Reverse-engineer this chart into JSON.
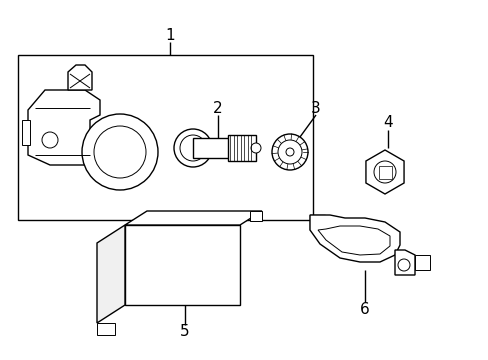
{
  "background_color": "#ffffff",
  "line_color": "#000000",
  "lw": 1.0,
  "figsize": [
    4.89,
    3.6
  ],
  "dpi": 100
}
